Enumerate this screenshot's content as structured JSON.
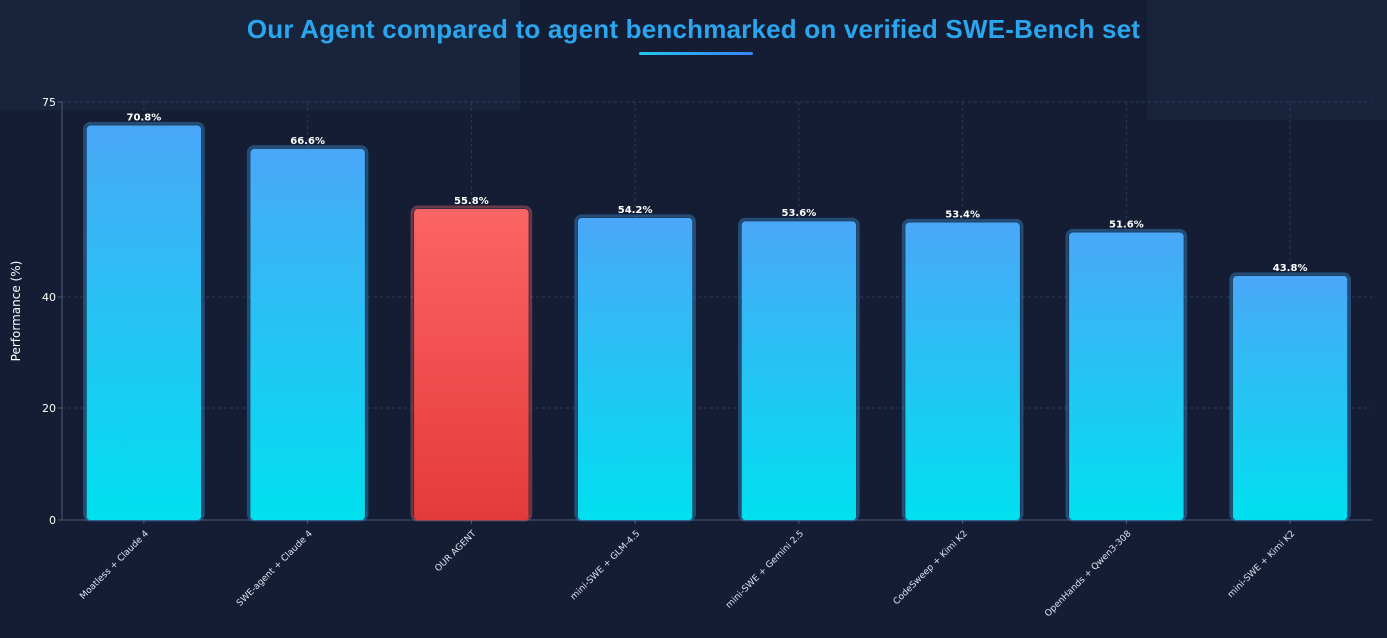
{
  "colors": {
    "background": "#141d33",
    "title": "#2aa6ee",
    "bar_top": "#4aa7f8",
    "bar_bottom": "#00e0ef",
    "highlight_top": "#fb6464",
    "highlight_bottom": "#e53a3a",
    "grid": "#2c3a55"
  },
  "chart_data": {
    "type": "bar",
    "title": "Our Agent compared to agent benchmarked on verified SWE-Bench set",
    "xlabel": "",
    "ylabel": "Performance (%)",
    "y_ticks": [
      0,
      20,
      40,
      75
    ],
    "ylim": [
      0,
      75
    ],
    "grid": true,
    "categories": [
      "Moatless + Claude 4",
      "SWE-agent + Claude 4",
      "OUR AGENT",
      "mini-SWE + GLM-4.5",
      "mini-SWE + Gemini 2.5",
      "CodeSweep + Kimi K2",
      "OpenHands + Qwen3-308",
      "mini-SWE + Kimi K2"
    ],
    "values": [
      70.8,
      66.6,
      55.8,
      54.2,
      53.6,
      53.4,
      51.6,
      43.8
    ],
    "data_labels": [
      "70.8%",
      "66.6%",
      "55.8%",
      "54.2%",
      "53.6%",
      "53.4%",
      "51.6%",
      "43.8%"
    ],
    "highlight_category": "OUR AGENT"
  }
}
